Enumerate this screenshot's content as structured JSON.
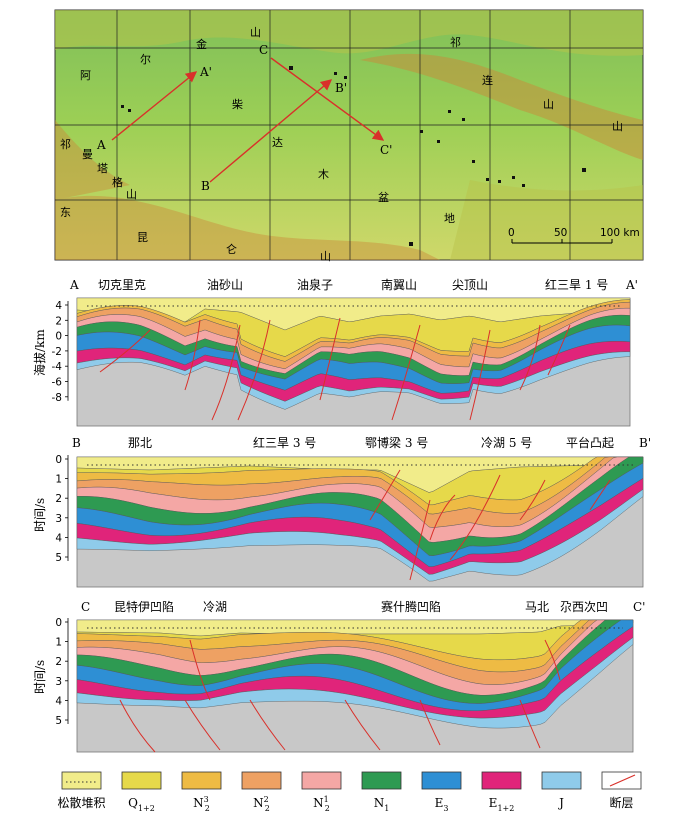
{
  "map": {
    "basin_chars": [
      "柴",
      "达",
      "木",
      "盆",
      "地"
    ],
    "range_north_chars": [
      "阿",
      "尔",
      "金",
      "山"
    ],
    "range_qilian_chars": [
      "祁",
      "连",
      "山"
    ],
    "range_kunlun_chars": [
      "东",
      "昆",
      "仑",
      "山"
    ],
    "range_west_chars": [
      "祁",
      "曼",
      "塔",
      "格",
      "山"
    ],
    "profile_points": [
      "A",
      "A'",
      "B",
      "B'",
      "C",
      "C'"
    ],
    "scale_labels": [
      "0",
      "50",
      "100 km"
    ]
  },
  "section_ab": {
    "start_label": "A",
    "end_label": "A'",
    "wells": [
      "切克里克",
      "油砂山",
      "油泉子",
      "南翼山",
      "尖顶山",
      "红三旱 1 号"
    ],
    "y_axis_title": "海拔/km",
    "y_ticks": [
      "4",
      "2",
      "0",
      "-2",
      "-4",
      "-6",
      "-8"
    ]
  },
  "section_bb": {
    "start_label": "B",
    "end_label": "B'",
    "wells": [
      "那北",
      "红三旱 3 号",
      "鄂博梁 3 号",
      "冷湖 5 号",
      "平台凸起"
    ],
    "y_axis_title": "时间/s",
    "y_ticks": [
      "0",
      "1",
      "2",
      "3",
      "4",
      "5"
    ]
  },
  "section_cc": {
    "start_label": "C",
    "end_label": "C'",
    "wells": [
      "昆特伊凹陷",
      "冷湖",
      "赛什腾凹陷",
      "马北",
      "尕西次凹"
    ],
    "y_axis_title": "时间/s",
    "y_ticks": [
      "0",
      "1",
      "2",
      "3",
      "4",
      "5"
    ]
  },
  "legend": {
    "items": [
      {
        "id": "loose",
        "label": "松散堆积",
        "color": "#f1ec8a"
      },
      {
        "id": "q",
        "label": "Q",
        "sub": "1+2",
        "sup": "",
        "color": "#e6d94a"
      },
      {
        "id": "n23",
        "label": "N",
        "sub": "2",
        "sup": "3",
        "color": "#eebb44"
      },
      {
        "id": "n22",
        "label": "N",
        "sub": "2",
        "sup": "2",
        "color": "#eea163"
      },
      {
        "id": "n21",
        "label": "N",
        "sub": "2",
        "sup": "1",
        "color": "#f4a7a5"
      },
      {
        "id": "n1",
        "label": "N",
        "sub": "1",
        "sup": "",
        "color": "#2e9a52"
      },
      {
        "id": "e3",
        "label": "E",
        "sub": "3",
        "sup": "",
        "color": "#2e8fd4"
      },
      {
        "id": "e12",
        "label": "E",
        "sub": "1+2",
        "sup": "",
        "color": "#e0247a"
      },
      {
        "id": "j",
        "label": "J",
        "sub": "",
        "sup": "",
        "color": "#8fcbea"
      },
      {
        "id": "fault",
        "label": "断层",
        "sub": "",
        "sup": "",
        "color": "#d9302a"
      }
    ]
  }
}
